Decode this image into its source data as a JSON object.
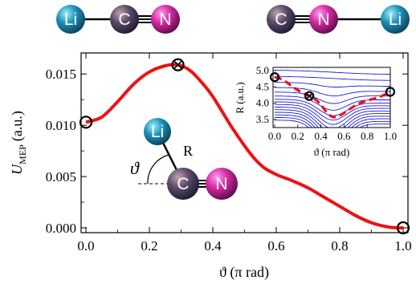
{
  "molecules": {
    "left": [
      "Li",
      "C",
      "N"
    ],
    "right": [
      "C",
      "N",
      "Li"
    ],
    "diagram": {
      "atoms": [
        "Li",
        "C",
        "N"
      ],
      "angle_symbol": "ϑ",
      "bond_symbol": "R"
    }
  },
  "atom_colors": {
    "Li": "#1e90b8",
    "C": "#5a4a6a",
    "N": "#d22aa0"
  },
  "colors": {
    "curve": "#ee1111",
    "inset_contours": "#1a1adc",
    "marker": "#000000"
  },
  "chart_data": [
    {
      "type": "line",
      "xlabel": "ϑ (π rad)",
      "ylabel": "U",
      "ylabel_sub": "MEP",
      "ylabel_unit": "(a.u.)",
      "xlim": [
        0,
        1
      ],
      "ylim": [
        -0.0005,
        0.0165
      ],
      "xticks": [
        "0.0",
        "0.2",
        "0.4",
        "0.6",
        "0.8",
        "1.0"
      ],
      "yticks": [
        "0.000",
        "0.005",
        "0.010",
        "0.015"
      ],
      "series": [
        {
          "x": [
            0.0,
            0.05,
            0.1,
            0.15,
            0.2,
            0.25,
            0.29,
            0.33,
            0.37,
            0.4,
            0.43,
            0.46,
            0.5,
            0.53,
            0.56,
            0.6,
            0.65,
            0.7,
            0.75,
            0.8,
            0.85,
            0.9,
            0.95,
            0.98,
            1.0
          ],
          "y": [
            0.0103,
            0.0108,
            0.0123,
            0.014,
            0.0152,
            0.0158,
            0.0159,
            0.0153,
            0.014,
            0.0128,
            0.0113,
            0.0098,
            0.008,
            0.0068,
            0.0059,
            0.0052,
            0.0046,
            0.0039,
            0.003,
            0.0021,
            0.0012,
            0.0005,
            0.0001,
            0.0,
            0.0
          ]
        }
      ],
      "markers": [
        {
          "x": 0.0,
          "y": 0.0103
        },
        {
          "x": 0.29,
          "y": 0.0159
        },
        {
          "x": 1.0,
          "y": 0.0
        }
      ]
    },
    {
      "type": "line",
      "xlabel": "ϑ (π rad)",
      "ylabel": "R (a.u.)",
      "xlim": [
        0,
        1
      ],
      "ylim": [
        3.3,
        5.05
      ],
      "xticks": [
        "0.0",
        "0.2",
        "0.4",
        "0.6",
        "0.8",
        "1.0"
      ],
      "yticks": [
        "3.5",
        "4.0",
        "4.5",
        "5.0"
      ],
      "contour_levels": [
        3.42,
        3.5,
        3.58,
        3.66,
        3.74,
        3.82,
        3.9,
        3.98,
        4.06,
        4.16,
        4.28,
        4.42,
        4.58,
        4.76,
        4.95
      ],
      "series": [
        {
          "x": [
            0.0,
            0.05,
            0.1,
            0.15,
            0.2,
            0.25,
            0.3,
            0.35,
            0.4,
            0.45,
            0.5,
            0.55,
            0.6,
            0.65,
            0.7,
            0.75,
            0.8,
            0.85,
            0.9,
            0.95,
            1.0
          ],
          "y": [
            4.8,
            4.75,
            4.65,
            4.52,
            4.4,
            4.3,
            4.22,
            4.12,
            3.95,
            3.72,
            3.58,
            3.6,
            3.7,
            3.82,
            3.93,
            4.02,
            4.08,
            4.13,
            4.18,
            4.26,
            4.35
          ]
        }
      ],
      "markers": [
        {
          "x": 0.0,
          "y": 4.8
        },
        {
          "x": 0.3,
          "y": 4.22
        },
        {
          "x": 1.0,
          "y": 4.35
        }
      ]
    }
  ]
}
